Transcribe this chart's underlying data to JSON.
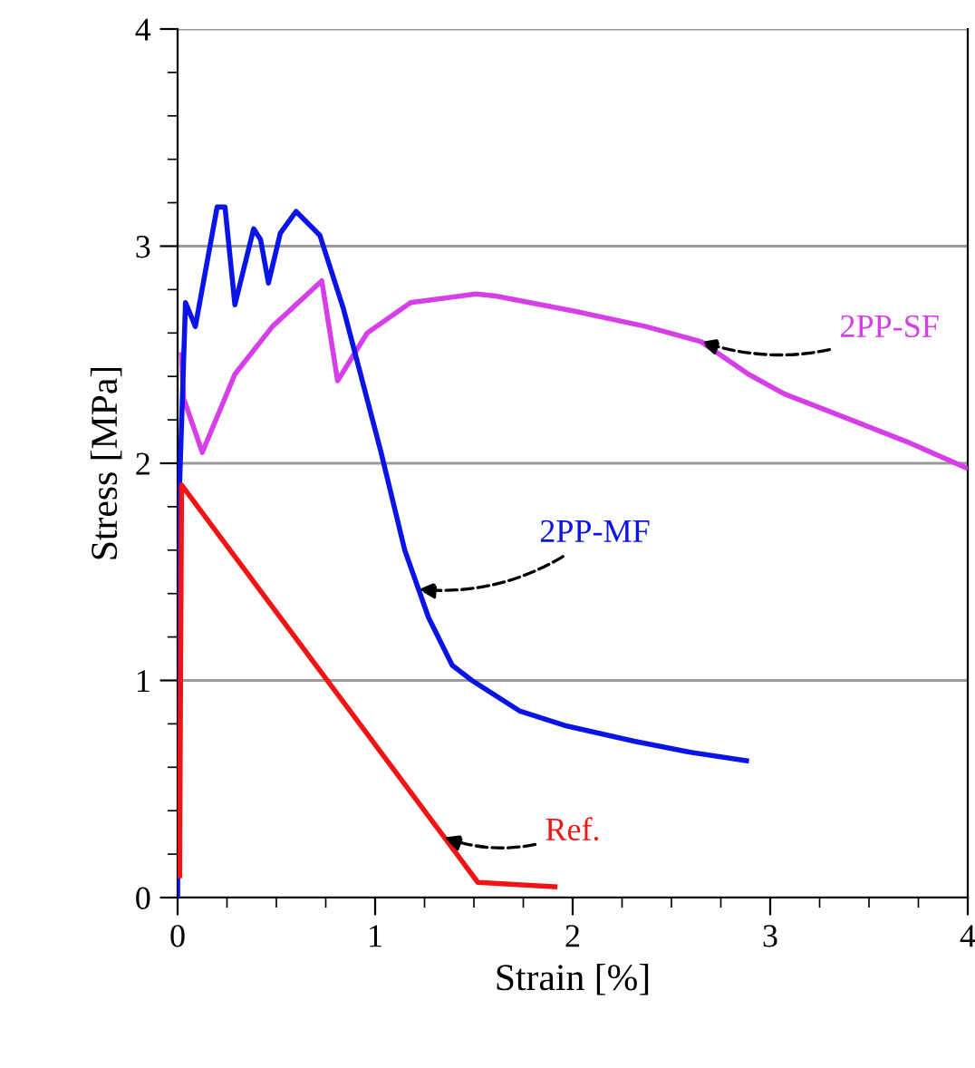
{
  "chart_data": {
    "type": "line",
    "xlabel": "Strain [%]",
    "ylabel": "Stress [MPa]",
    "xlim": [
      0,
      4
    ],
    "ylim": [
      0,
      4
    ],
    "xticks": [
      0,
      1,
      2,
      3,
      4
    ],
    "yticks": [
      0,
      1,
      2,
      3,
      4
    ],
    "grid": "y",
    "legend": false,
    "marker": "none",
    "line_style": "solid",
    "series": [
      {
        "name": "2PP-SF",
        "color": "#d63fe8",
        "x": [
          0.02,
          0.03,
          0.125,
          0.29,
          0.48,
          0.73,
          0.81,
          0.96,
          1.18,
          1.51,
          1.61,
          2.01,
          2.37,
          2.65,
          2.89,
          3.07,
          3.38,
          3.69,
          3.99
        ],
        "values": [
          2.5,
          2.3,
          2.05,
          2.41,
          2.63,
          2.84,
          2.38,
          2.6,
          2.74,
          2.78,
          2.77,
          2.7,
          2.63,
          2.56,
          2.41,
          2.32,
          2.21,
          2.1,
          1.98
        ]
      },
      {
        "name": "2PP-MF",
        "color": "#0a14e6",
        "x": [
          0.0,
          0.01,
          0.04,
          0.09,
          0.2,
          0.24,
          0.29,
          0.385,
          0.42,
          0.46,
          0.52,
          0.6,
          0.72,
          0.84,
          1.03,
          1.15,
          1.27,
          1.39,
          1.49,
          1.73,
          1.97,
          2.31,
          2.59,
          2.88
        ],
        "values": [
          0.0,
          1.9,
          2.74,
          2.63,
          3.18,
          3.18,
          2.73,
          3.08,
          3.03,
          2.83,
          3.06,
          3.16,
          3.05,
          2.71,
          2.05,
          1.6,
          1.29,
          1.07,
          1.0,
          0.86,
          0.79,
          0.72,
          0.67,
          0.63
        ]
      },
      {
        "name": "Ref.",
        "color": "#f01414",
        "x": [
          0.01,
          0.02,
          1.52,
          1.91
        ],
        "values": [
          0.1,
          1.9,
          0.07,
          0.05
        ]
      }
    ]
  }
}
